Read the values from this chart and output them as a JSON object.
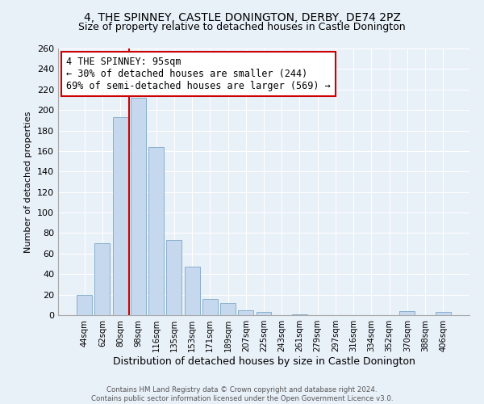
{
  "title": "4, THE SPINNEY, CASTLE DONINGTON, DERBY, DE74 2PZ",
  "subtitle": "Size of property relative to detached houses in Castle Donington",
  "xlabel": "Distribution of detached houses by size in Castle Donington",
  "ylabel": "Number of detached properties",
  "bar_labels": [
    "44sqm",
    "62sqm",
    "80sqm",
    "98sqm",
    "116sqm",
    "135sqm",
    "153sqm",
    "171sqm",
    "189sqm",
    "207sqm",
    "225sqm",
    "243sqm",
    "261sqm",
    "279sqm",
    "297sqm",
    "316sqm",
    "334sqm",
    "352sqm",
    "370sqm",
    "388sqm",
    "406sqm"
  ],
  "bar_values": [
    20,
    70,
    193,
    212,
    164,
    73,
    47,
    16,
    12,
    5,
    3,
    0,
    1,
    0,
    0,
    0,
    0,
    0,
    4,
    0,
    3
  ],
  "bar_color": "#c5d8ed",
  "bar_edge_color": "#8aafcc",
  "vline_x_index": 2,
  "vline_side": "right",
  "vline_color": "#cc0000",
  "annotation_text": "4 THE SPINNEY: 95sqm\n← 30% of detached houses are smaller (244)\n69% of semi-detached houses are larger (569) →",
  "annotation_box_color": "#ffffff",
  "annotation_box_edge": "#cc0000",
  "ylim": [
    0,
    260
  ],
  "yticks": [
    0,
    20,
    40,
    60,
    80,
    100,
    120,
    140,
    160,
    180,
    200,
    220,
    240,
    260
  ],
  "background_color": "#e8f0f8",
  "footer_line1": "Contains HM Land Registry data © Crown copyright and database right 2024.",
  "footer_line2": "Contains public sector information licensed under the Open Government Licence v3.0.",
  "title_fontsize": 10,
  "subtitle_fontsize": 9,
  "ylabel_fontsize": 8,
  "xlabel_fontsize": 9
}
